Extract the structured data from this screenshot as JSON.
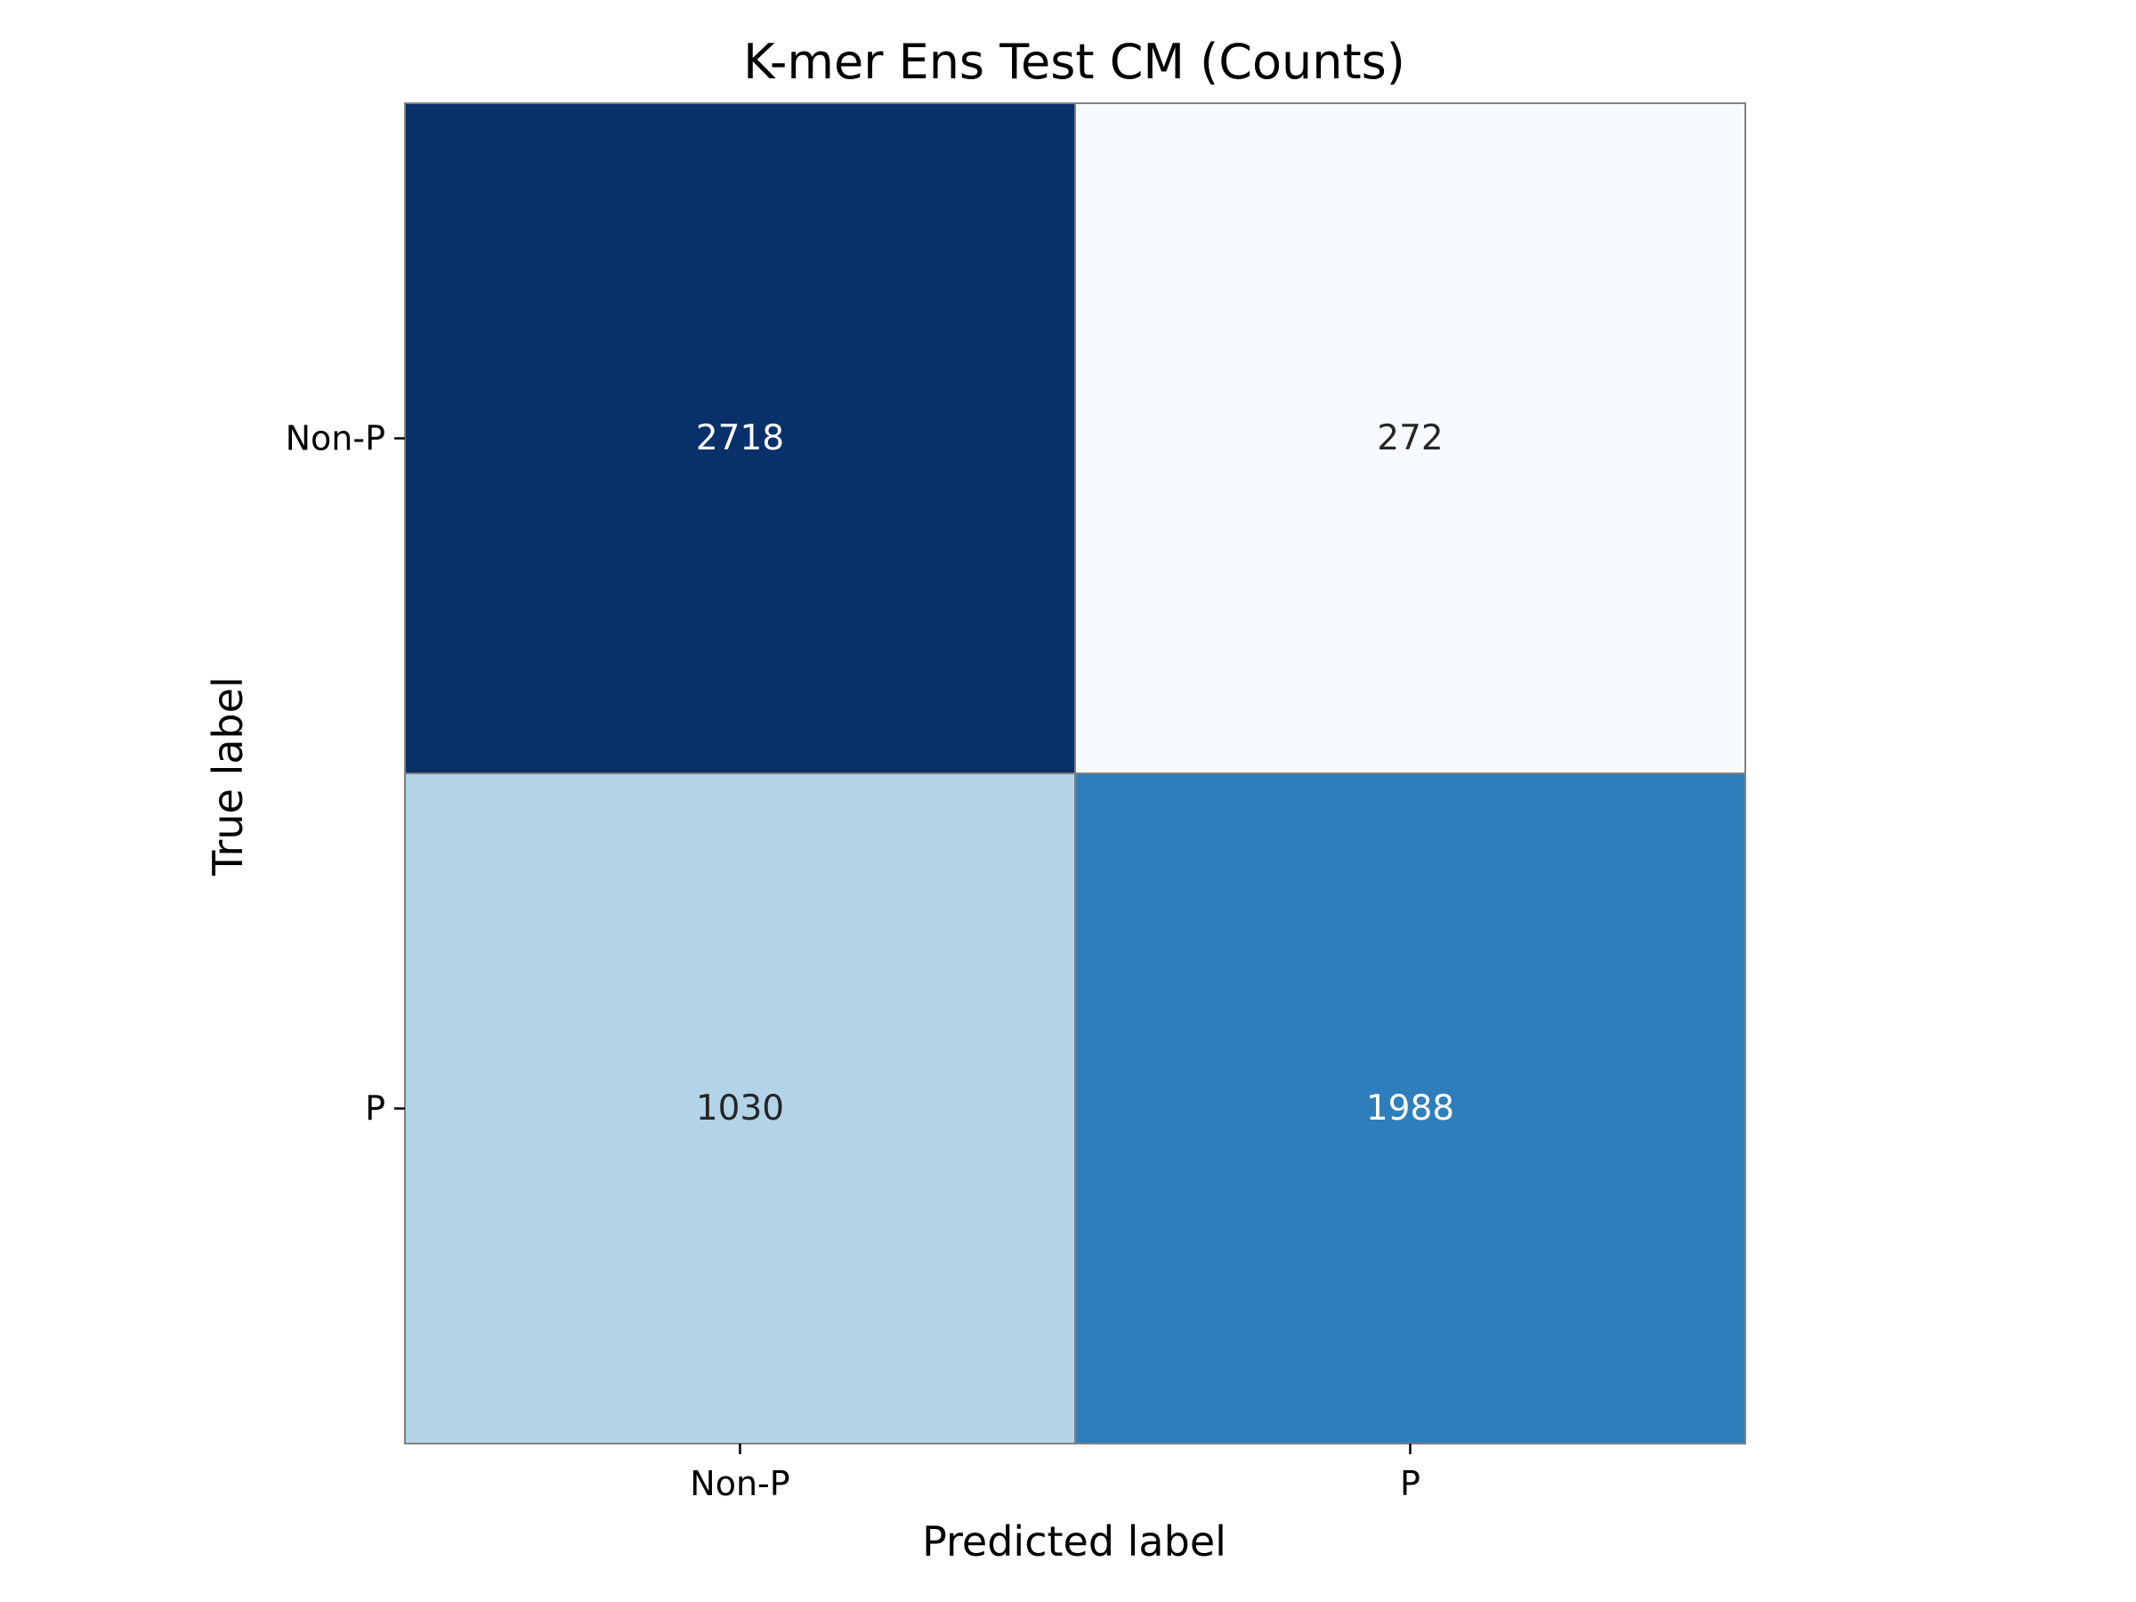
{
  "chart_data": {
    "type": "heatmap",
    "title": "K-mer Ens Test CM (Counts)",
    "xlabel": "Predicted label",
    "ylabel": "True label",
    "x_categories": [
      "Non-P",
      "P"
    ],
    "y_categories": [
      "Non-P",
      "P"
    ],
    "values": [
      [
        2718,
        272
      ],
      [
        1030,
        1988
      ]
    ],
    "value_labels": [
      [
        "2718",
        "272"
      ],
      [
        "1030",
        "1988"
      ]
    ],
    "colormap": "Blues",
    "grid": false,
    "legend": "none",
    "colors": {
      "cell_border": "#808080",
      "text_dark": "#262626",
      "text_light": "#ffffff"
    }
  }
}
